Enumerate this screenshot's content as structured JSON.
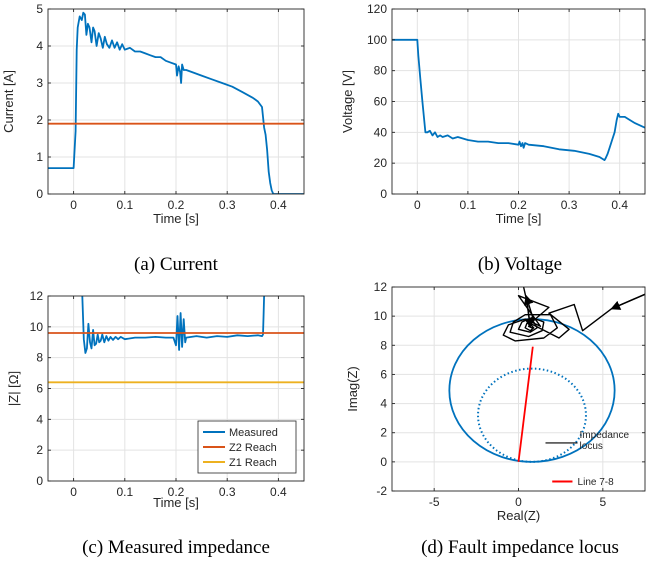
{
  "chart_data": [
    {
      "id": "a",
      "type": "line",
      "caption": "(a) Current",
      "xlabel": "Time [s]",
      "ylabel": "Current [A]",
      "xlim": [
        -0.05,
        0.45
      ],
      "ylim": [
        0,
        5
      ],
      "xticks": [
        0,
        0.1,
        0.2,
        0.3,
        0.4
      ],
      "xtick_labels": [
        "0",
        "0.1",
        "0.2",
        "0.3",
        "0.4"
      ],
      "yticks": [
        0,
        1,
        2,
        3,
        4,
        5
      ],
      "ytick_labels": [
        "0",
        "1",
        "2",
        "3",
        "4",
        "5"
      ],
      "grid": true,
      "series": [
        {
          "color": "#0072BD",
          "x": [
            -0.05,
            0.0,
            0.004,
            0.006,
            0.008,
            0.012,
            0.016,
            0.019,
            0.022,
            0.025,
            0.028,
            0.031,
            0.035,
            0.038,
            0.041,
            0.045,
            0.049,
            0.053,
            0.057,
            0.061,
            0.065,
            0.07,
            0.075,
            0.08,
            0.085,
            0.09,
            0.095,
            0.1,
            0.11,
            0.12,
            0.13,
            0.14,
            0.15,
            0.16,
            0.17,
            0.18,
            0.19,
            0.2,
            0.202,
            0.205,
            0.208,
            0.21,
            0.212,
            0.215,
            0.22,
            0.23,
            0.25,
            0.27,
            0.29,
            0.31,
            0.33,
            0.35,
            0.36,
            0.368,
            0.372,
            0.375,
            0.378,
            0.381,
            0.384,
            0.387,
            0.39,
            0.395,
            0.45
          ],
          "y": [
            0.7,
            0.7,
            1.7,
            3.9,
            4.5,
            4.8,
            4.7,
            4.9,
            4.85,
            4.3,
            4.6,
            4.5,
            4.1,
            4.5,
            4.4,
            4.0,
            4.35,
            4.2,
            3.95,
            4.25,
            4.05,
            3.95,
            4.15,
            3.95,
            4.1,
            3.9,
            4.05,
            3.9,
            3.95,
            3.85,
            3.85,
            3.8,
            3.75,
            3.7,
            3.7,
            3.6,
            3.55,
            3.5,
            3.2,
            3.45,
            3.3,
            3.0,
            3.5,
            3.35,
            3.35,
            3.3,
            3.2,
            3.1,
            3.0,
            2.9,
            2.75,
            2.6,
            2.5,
            2.35,
            1.8,
            1.6,
            1.2,
            0.6,
            0.3,
            0.1,
            0.0,
            0.0,
            0.0
          ]
        },
        {
          "color": "#D95319",
          "x": [
            -0.05,
            0.45
          ],
          "y": [
            1.9,
            1.9
          ]
        }
      ]
    },
    {
      "id": "b",
      "type": "line",
      "caption": "(b) Voltage",
      "xlabel": "Time [s]",
      "ylabel": "Voltage [V]",
      "xlim": [
        -0.05,
        0.45
      ],
      "ylim": [
        0,
        120
      ],
      "xticks": [
        0,
        0.1,
        0.2,
        0.3,
        0.4
      ],
      "xtick_labels": [
        "0",
        "0.1",
        "0.2",
        "0.3",
        "0.4"
      ],
      "yticks": [
        0,
        20,
        40,
        60,
        80,
        100,
        120
      ],
      "ytick_labels": [
        "0",
        "20",
        "40",
        "60",
        "80",
        "100",
        "120"
      ],
      "grid": true,
      "series": [
        {
          "color": "#0072BD",
          "x": [
            -0.05,
            0.0,
            0.002,
            0.006,
            0.01,
            0.013,
            0.016,
            0.02,
            0.025,
            0.03,
            0.035,
            0.04,
            0.045,
            0.05,
            0.06,
            0.07,
            0.08,
            0.1,
            0.12,
            0.14,
            0.16,
            0.18,
            0.2,
            0.202,
            0.205,
            0.208,
            0.21,
            0.213,
            0.22,
            0.25,
            0.28,
            0.31,
            0.34,
            0.36,
            0.37,
            0.372,
            0.376,
            0.38,
            0.385,
            0.39,
            0.394,
            0.397,
            0.4,
            0.41,
            0.42,
            0.43,
            0.45
          ],
          "y": [
            100,
            100,
            90,
            75,
            60,
            50,
            40,
            40,
            41,
            38,
            40,
            37,
            38,
            37,
            38,
            36,
            37,
            35,
            34,
            34,
            33,
            33,
            32,
            34,
            31,
            33,
            30,
            33,
            32,
            31,
            29,
            28,
            26,
            24,
            22,
            23,
            26,
            30,
            35,
            40,
            48,
            52,
            50,
            50,
            48,
            46,
            43
          ]
        }
      ]
    },
    {
      "id": "c",
      "type": "line",
      "caption": "(c) Measured impedance",
      "xlabel": "Time [s]",
      "ylabel": "|Z| [Ω]",
      "xlim": [
        -0.05,
        0.45
      ],
      "ylim": [
        0,
        12
      ],
      "xticks": [
        0,
        0.1,
        0.2,
        0.3,
        0.4
      ],
      "xtick_labels": [
        "0",
        "0.1",
        "0.2",
        "0.3",
        "0.4"
      ],
      "yticks": [
        0,
        2,
        4,
        6,
        8,
        10,
        12
      ],
      "ytick_labels": [
        "0",
        "2",
        "4",
        "6",
        "8",
        "10",
        "12"
      ],
      "grid": true,
      "legend": {
        "position": "bottom-right",
        "entries": [
          "Measured",
          "Z2 Reach",
          "Z1 Reach"
        ]
      },
      "series": [
        {
          "name": "Measured",
          "color": "#0072BD",
          "x": [
            0.017,
            0.02,
            0.023,
            0.026,
            0.029,
            0.032,
            0.035,
            0.038,
            0.041,
            0.044,
            0.047,
            0.05,
            0.053,
            0.056,
            0.06,
            0.064,
            0.068,
            0.072,
            0.077,
            0.082,
            0.087,
            0.092,
            0.1,
            0.12,
            0.14,
            0.16,
            0.18,
            0.195,
            0.2,
            0.203,
            0.206,
            0.209,
            0.212,
            0.215,
            0.218,
            0.22,
            0.24,
            0.26,
            0.28,
            0.3,
            0.32,
            0.34,
            0.36,
            0.368,
            0.37,
            0.371,
            0.372
          ],
          "y": [
            12,
            9.2,
            8.3,
            8.6,
            10.2,
            9.0,
            8.6,
            9.8,
            8.8,
            8.9,
            9.5,
            9.0,
            9.1,
            9.5,
            9.0,
            9.4,
            9.1,
            9.35,
            9.15,
            9.35,
            9.2,
            9.35,
            9.2,
            9.3,
            9.3,
            9.35,
            9.3,
            9.3,
            8.8,
            10.7,
            8.5,
            10.9,
            8.7,
            10.5,
            9.0,
            9.3,
            9.4,
            9.3,
            9.4,
            9.35,
            9.45,
            9.4,
            9.45,
            9.4,
            9.5,
            10.8,
            12
          ]
        },
        {
          "name": "Z2 Reach",
          "color": "#D95319",
          "x": [
            -0.05,
            0.45
          ],
          "y": [
            9.6,
            9.6
          ]
        },
        {
          "name": "Z1 Reach",
          "color": "#EDB120",
          "x": [
            -0.05,
            0.45
          ],
          "y": [
            6.4,
            6.4
          ]
        }
      ]
    },
    {
      "id": "d",
      "type": "line",
      "caption": "(d) Fault impedance locus",
      "xlabel": "Real(Z)",
      "ylabel": "Imag(Z)",
      "xlim": [
        -7.5,
        7.5
      ],
      "ylim": [
        -2,
        12
      ],
      "xticks": [
        -5,
        0,
        5
      ],
      "xtick_labels": [
        "-5",
        "0",
        "5"
      ],
      "yticks": [
        -2,
        0,
        2,
        4,
        6,
        8,
        10,
        12
      ],
      "ytick_labels": [
        "-2",
        "0",
        "2",
        "4",
        "6",
        "8",
        "10",
        "12"
      ],
      "grid": true,
      "annotations": [
        {
          "text": "Impedance locus",
          "lines": [
            "Impedance",
            "locus"
          ],
          "x": 3.5,
          "y": 1.3,
          "arrow_to": [
            1.6,
            1.3
          ]
        },
        {
          "text": "Line 7-8",
          "x": 3.5,
          "y": -1.35
        }
      ],
      "circles": [
        {
          "cx": 0.8,
          "cy": 4.9,
          "r": 4.9,
          "style": "solid",
          "color": "#0072BD"
        },
        {
          "cx": 0.8,
          "cy": 3.2,
          "r": 3.2,
          "style": "dotted",
          "color": "#0072BD"
        }
      ],
      "series": [
        {
          "name": "Line 7-8",
          "color": "#FF0000",
          "x": [
            0,
            0.85
          ],
          "y": [
            0,
            7.9
          ]
        },
        {
          "name": "Impedance locus",
          "color": "#000000",
          "x": [
            7.5,
            5.5,
            3.8,
            3.3,
            1.8,
            3.0,
            2.4,
            0.7,
            1.8,
            0.0,
            1.3,
            0.4,
            -0.6,
            -0.9,
            -0.2,
            1.5,
            2.3,
            1.9,
            0.4,
            -0.3,
            -0.5,
            0.6,
            1.4,
            1.5,
            0.8,
            0.2,
            0.0,
            0.7,
            1.1,
            0.9,
            0.5,
            0.4,
            0.7,
            0.9,
            0.7,
            0.6,
            0.8,
            0.7
          ],
          "y": [
            11.5,
            10.5,
            9.0,
            10.8,
            10.2,
            9.1,
            8.5,
            9.5,
            10.6,
            11.4,
            9.3,
            9.8,
            9.4,
            8.7,
            8.3,
            8.5,
            9.2,
            10.1,
            10.1,
            9.6,
            8.9,
            8.6,
            9.0,
            9.6,
            9.9,
            9.6,
            9.1,
            8.9,
            9.2,
            9.6,
            9.5,
            9.2,
            9.0,
            9.2,
            9.45,
            9.3,
            9.2,
            9.25
          ]
        },
        {
          "name": "Impedance locus tail",
          "color": "#000000",
          "x": [
            0.7,
            0.5,
            0.3
          ],
          "y": [
            9.25,
            11.0,
            12.0
          ]
        }
      ]
    }
  ]
}
